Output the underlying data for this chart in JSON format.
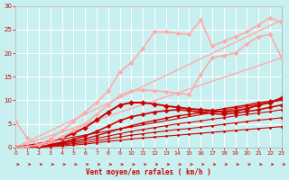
{
  "bg_color": "#c8f0f0",
  "grid_color": "#ffffff",
  "xlabel": "Vent moyen/en rafales ( km/h )",
  "xlabel_color": "#cc0000",
  "tick_color": "#cc0000",
  "xlim": [
    0,
    23
  ],
  "ylim": [
    0,
    30
  ],
  "xticks": [
    0,
    1,
    2,
    3,
    4,
    5,
    6,
    7,
    8,
    9,
    10,
    11,
    12,
    13,
    14,
    15,
    16,
    17,
    18,
    19,
    20,
    21,
    22,
    23
  ],
  "yticks": [
    0,
    5,
    10,
    15,
    20,
    25,
    30
  ],
  "lines": [
    {
      "x": [
        0,
        1,
        2,
        3,
        4,
        5,
        6,
        7,
        8,
        9,
        10,
        11,
        12,
        13,
        14,
        15,
        16,
        17,
        18,
        19,
        20,
        21,
        22,
        23
      ],
      "y": [
        0,
        0,
        0,
        0.2,
        0.3,
        0.5,
        0.7,
        1.0,
        1.3,
        1.5,
        1.8,
        2.0,
        2.2,
        2.4,
        2.6,
        2.8,
        3.0,
        3.2,
        3.4,
        3.6,
        3.8,
        4.0,
        4.2,
        4.4
      ],
      "color": "#cc0000",
      "lw": 0.8,
      "marker": "D",
      "ms": 1.5
    },
    {
      "x": [
        0,
        1,
        2,
        3,
        4,
        5,
        6,
        7,
        8,
        9,
        10,
        11,
        12,
        13,
        14,
        15,
        16,
        17,
        18,
        19,
        20,
        21,
        22,
        23
      ],
      "y": [
        0,
        0,
        0,
        0.3,
        0.5,
        0.8,
        1.0,
        1.4,
        1.8,
        2.2,
        2.6,
        2.9,
        3.2,
        3.5,
        3.8,
        4.0,
        4.3,
        4.6,
        4.9,
        5.2,
        5.5,
        5.8,
        6.0,
        6.3
      ],
      "color": "#cc0000",
      "lw": 0.8,
      "marker": "D",
      "ms": 1.5
    },
    {
      "x": [
        0,
        1,
        2,
        3,
        4,
        5,
        6,
        7,
        8,
        9,
        10,
        11,
        12,
        13,
        14,
        15,
        16,
        17,
        18,
        19,
        20,
        21,
        22,
        23
      ],
      "y": [
        0,
        0,
        0,
        0.4,
        0.7,
        1.0,
        1.4,
        1.9,
        2.4,
        2.9,
        3.4,
        3.8,
        4.2,
        4.6,
        5.0,
        5.3,
        5.6,
        6.0,
        6.3,
        6.7,
        7.0,
        7.3,
        7.6,
        8.0
      ],
      "color": "#cc0000",
      "lw": 0.8,
      "marker": "D",
      "ms": 1.5
    },
    {
      "x": [
        0,
        1,
        2,
        3,
        4,
        5,
        6,
        7,
        8,
        9,
        10,
        11,
        12,
        13,
        14,
        15,
        16,
        17,
        18,
        19,
        20,
        21,
        22,
        23
      ],
      "y": [
        0,
        0,
        0,
        0.5,
        0.9,
        1.3,
        1.8,
        2.5,
        3.2,
        3.9,
        4.6,
        5.2,
        5.7,
        6.2,
        6.7,
        7.0,
        7.4,
        7.8,
        8.2,
        8.6,
        9.0,
        9.5,
        9.8,
        10.2
      ],
      "color": "#cc0000",
      "lw": 1.0,
      "marker": "D",
      "ms": 2.0
    },
    {
      "x": [
        0,
        1,
        2,
        3,
        4,
        5,
        6,
        7,
        8,
        9,
        10,
        11,
        12,
        13,
        14,
        15,
        16,
        17,
        18,
        19,
        20,
        21,
        22,
        23
      ],
      "y": [
        0,
        0,
        0,
        0.6,
        1.1,
        1.7,
        2.4,
        3.4,
        4.5,
        5.7,
        6.5,
        7.0,
        7.5,
        7.8,
        8.0,
        7.8,
        7.5,
        7.2,
        7.0,
        7.3,
        7.6,
        8.0,
        8.5,
        9.0
      ],
      "color": "#cc0000",
      "lw": 1.2,
      "marker": "D",
      "ms": 2.5
    },
    {
      "x": [
        0,
        2,
        3,
        4,
        5,
        6,
        7,
        8,
        9,
        10,
        11,
        12,
        13,
        14,
        15,
        16,
        17,
        18,
        19,
        20,
        21,
        22,
        23
      ],
      "y": [
        0,
        0.5,
        1.2,
        2.0,
        3.0,
        4.2,
        5.8,
        7.5,
        9.0,
        9.5,
        9.5,
        9.2,
        8.8,
        8.5,
        8.2,
        8.0,
        7.8,
        7.5,
        7.8,
        8.2,
        9.0,
        9.5,
        10.5
      ],
      "color": "#cc0000",
      "lw": 1.4,
      "marker": "D",
      "ms": 3.0
    },
    {
      "x": [
        0,
        1,
        2,
        3,
        4,
        5,
        6,
        7,
        8,
        9,
        10,
        11,
        12,
        13,
        14,
        15,
        16,
        17,
        18,
        19,
        20,
        21,
        22,
        23
      ],
      "y": [
        5.5,
        2.0,
        0.5,
        1.2,
        2.2,
        3.5,
        5.0,
        7.0,
        9.0,
        11.0,
        12.0,
        12.2,
        12.0,
        11.8,
        11.5,
        11.2,
        15.5,
        19.0,
        19.5,
        20.0,
        22.0,
        23.5,
        24.0,
        19.0
      ],
      "color": "#ffaaaa",
      "lw": 1.2,
      "marker": "D",
      "ms": 2.5
    },
    {
      "x": [
        0,
        1,
        2,
        3,
        4,
        5,
        6,
        7,
        8,
        9,
        10,
        11,
        12,
        13,
        14,
        15,
        16,
        17,
        18,
        19,
        20,
        21,
        22,
        23
      ],
      "y": [
        0,
        0.2,
        0.5,
        1.8,
        3.5,
        5.5,
        7.5,
        9.5,
        12.0,
        16.0,
        18.0,
        21.0,
        24.5,
        24.5,
        24.2,
        24.0,
        27.0,
        21.5,
        22.5,
        23.5,
        24.5,
        26.0,
        27.5,
        26.5
      ],
      "color": "#ffaaaa",
      "lw": 1.2,
      "marker": "D",
      "ms": 2.5
    },
    {
      "x": [
        0,
        23
      ],
      "y": [
        0,
        27
      ],
      "color": "#ffaaaa",
      "lw": 1.0,
      "marker": null,
      "ms": 0
    },
    {
      "x": [
        0,
        23
      ],
      "y": [
        0,
        19
      ],
      "color": "#ffaaaa",
      "lw": 1.0,
      "marker": null,
      "ms": 0
    },
    {
      "x": [
        0,
        23
      ],
      "y": [
        0,
        10
      ],
      "color": "#cc0000",
      "lw": 0.8,
      "marker": null,
      "ms": 0
    }
  ],
  "arrow_color": "#cc0000"
}
